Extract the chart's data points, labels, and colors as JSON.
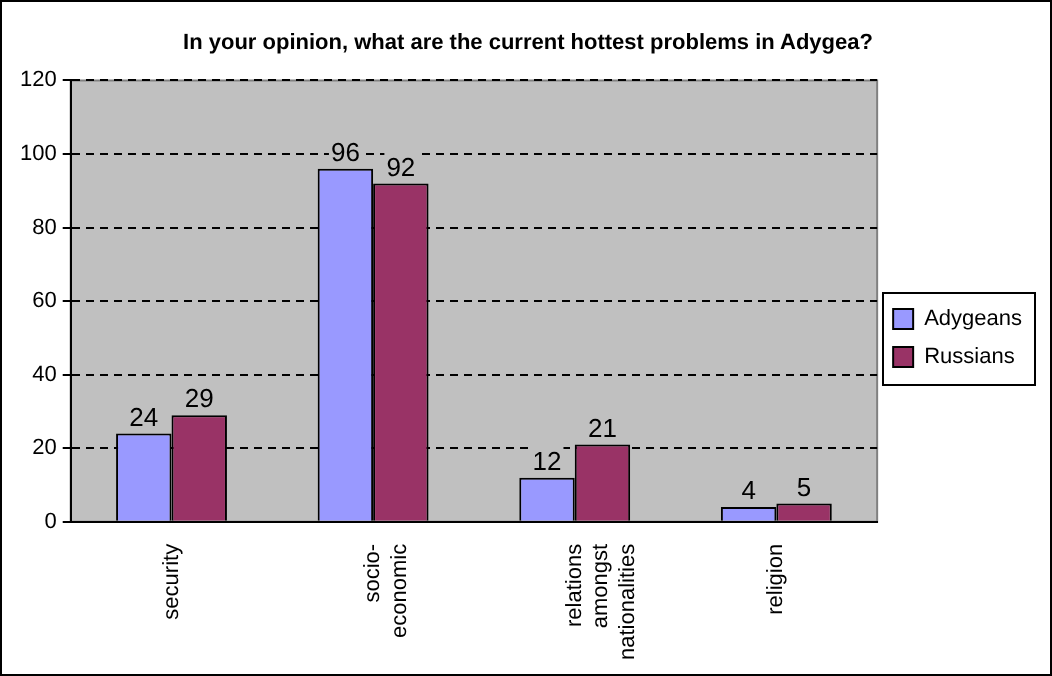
{
  "chart_data": {
    "type": "bar",
    "title": "In your opinion, what are the current hottest problems in Adygea?",
    "categories": [
      "security",
      "socio-economic",
      "relations amongst nationalities",
      "religion"
    ],
    "series": [
      {
        "name": "Adygeans",
        "color": "#9999ff",
        "values": [
          24,
          96,
          12,
          4
        ]
      },
      {
        "name": "Russians",
        "color": "#993366",
        "values": [
          29,
          92,
          21,
          5
        ]
      }
    ],
    "ylim": [
      0,
      120
    ],
    "yticks": [
      0,
      20,
      40,
      60,
      80,
      100,
      120
    ],
    "grid": "y",
    "legend": "right",
    "data_labels": true
  }
}
